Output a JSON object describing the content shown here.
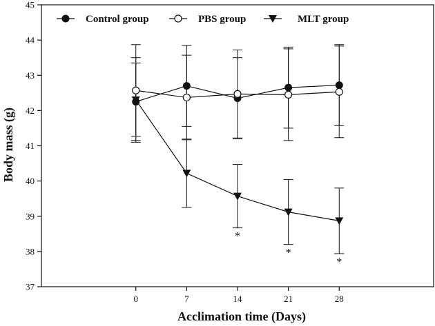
{
  "chart_data": {
    "type": "line",
    "title": "",
    "xlabel": "Acclimation time (Days)",
    "ylabel": "Body mass (g)",
    "x": [
      0,
      7,
      14,
      21,
      28
    ],
    "x_tick_labels": [
      "0",
      "7",
      "14",
      "21",
      "28"
    ],
    "xlim": [
      -13,
      41
    ],
    "ylim": [
      37,
      45
    ],
    "y_ticks": [
      37,
      38,
      39,
      40,
      41,
      42,
      43,
      44,
      45
    ],
    "grid": false,
    "legend_position": "top",
    "series": [
      {
        "name": "Control group",
        "marker": "filled-circle",
        "values": [
          42.25,
          42.7,
          42.35,
          42.65,
          42.72
        ],
        "error": [
          1.1,
          1.15,
          1.15,
          1.15,
          1.15
        ]
      },
      {
        "name": "PBS group",
        "marker": "open-circle",
        "values": [
          42.57,
          42.37,
          42.47,
          42.45,
          42.53
        ],
        "error": [
          1.3,
          1.2,
          1.25,
          1.3,
          1.3
        ]
      },
      {
        "name": "MLT group",
        "marker": "filled-triangle-down",
        "values": [
          42.3,
          40.22,
          39.57,
          39.12,
          38.87
        ],
        "error": [
          1.2,
          0.97,
          0.9,
          0.92,
          0.93
        ]
      }
    ],
    "annotations": [
      {
        "text": "*",
        "x": 14,
        "series": "MLT group"
      },
      {
        "text": "*",
        "x": 21,
        "series": "MLT group"
      },
      {
        "text": "*",
        "x": 28,
        "series": "MLT group"
      }
    ]
  }
}
